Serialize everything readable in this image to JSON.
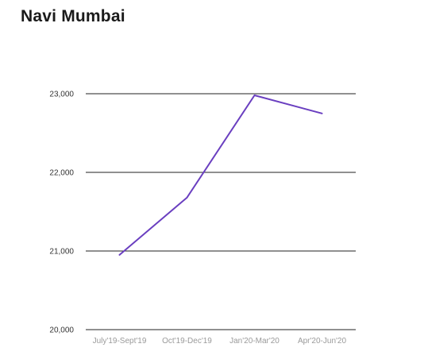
{
  "chart_data": {
    "type": "line",
    "title": "Navi Mumbai",
    "xlabel": "",
    "ylabel": "",
    "categories": [
      "July'19-Sept'19",
      "Oct'19-Dec'19",
      "Jan'20-Mar'20",
      "Apr'20-Jun'20"
    ],
    "series": [
      {
        "values": [
          20950,
          21680,
          22980,
          22750
        ],
        "color": "#6a3fc0"
      }
    ],
    "ylim": [
      20000,
      23000
    ],
    "y_ticks": [
      20000,
      21000,
      22000,
      23000
    ],
    "y_tick_labels": [
      "20,000",
      "21,000",
      "22,000",
      "23,000"
    ],
    "grid": true,
    "legend": "none"
  }
}
